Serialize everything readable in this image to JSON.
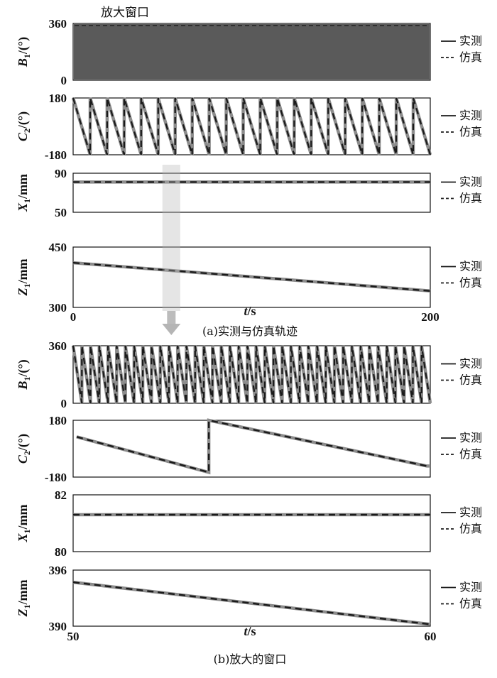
{
  "window_label": "放大窗口",
  "legend": {
    "measured": "实测",
    "simulated": "仿真"
  },
  "colors": {
    "measured": "#1a1a1a",
    "simulated": "#8c8c8c",
    "window_fill": "#5a5a5a",
    "arrow": "#b5b5b5"
  },
  "chart_data": [
    {
      "group": "a",
      "caption": "(a)实测与仿真轨迹",
      "xlabel": "t/s",
      "xlim": [
        0,
        200
      ],
      "x_ticks": [
        "0",
        "200"
      ],
      "highlight_window": [
        50,
        60
      ],
      "subplots": [
        {
          "id": "B1",
          "type": "line",
          "ylabel": "B1/(°)",
          "ylim": [
            0,
            360
          ],
          "y_ticks": [
            "360",
            "0"
          ],
          "filled_dense_signal": true,
          "sawtooth_cycles": 200,
          "series": [
            {
              "name": "实测"
            },
            {
              "name": "仿真"
            }
          ]
        },
        {
          "id": "C2",
          "type": "line",
          "ylabel": "C2/(°)",
          "ylim": [
            -180,
            180
          ],
          "y_ticks": [
            "180",
            "-180"
          ],
          "sawtooth": {
            "cycles": 21,
            "start": 80,
            "step_value": -180
          },
          "series": [
            {
              "name": "实测"
            },
            {
              "name": "仿真"
            }
          ]
        },
        {
          "id": "X1",
          "type": "line",
          "ylabel": "X1/mm",
          "ylim": [
            50,
            90
          ],
          "y_ticks": [
            "90",
            "50"
          ],
          "series": [
            {
              "name": "实测",
              "x": [
                0,
                200
              ],
              "y": [
                81,
                81
              ]
            },
            {
              "name": "仿真",
              "x": [
                0,
                200
              ],
              "y": [
                81,
                81
              ]
            }
          ]
        },
        {
          "id": "Z1",
          "type": "line",
          "ylabel": "Z1/mm",
          "ylim": [
            300,
            450
          ],
          "y_ticks": [
            "450",
            "300"
          ],
          "series": [
            {
              "name": "实测",
              "x": [
                0,
                200
              ],
              "y": [
                411,
                341
              ]
            },
            {
              "name": "仿真",
              "x": [
                0,
                200
              ],
              "y": [
                411,
                341
              ]
            }
          ]
        }
      ]
    },
    {
      "group": "b",
      "caption": "(b)放大的窗口",
      "xlabel": "t/s",
      "xlim": [
        50,
        60
      ],
      "x_ticks": [
        "50",
        "60"
      ],
      "subplots": [
        {
          "id": "B1",
          "type": "line",
          "ylabel": "B1/(°)",
          "ylim": [
            0,
            360
          ],
          "y_ticks": [
            "360",
            "0"
          ],
          "sawtooth": {
            "cycles": 41,
            "start": 340,
            "step_value": 0
          },
          "series": [
            {
              "name": "实测"
            },
            {
              "name": "仿真"
            }
          ]
        },
        {
          "id": "C2",
          "type": "line",
          "ylabel": "C2/(°)",
          "ylim": [
            -180,
            180
          ],
          "y_ticks": [
            "180",
            "-180"
          ],
          "series": [
            {
              "name": "实测",
              "x": [
                50.1,
                53.8,
                53.8,
                59.9,
                60
              ],
              "y": [
                75,
                -150,
                180,
                -110,
                -110
              ]
            },
            {
              "name": "仿真",
              "x": [
                50.1,
                53.8,
                53.8,
                59.9,
                60
              ],
              "y": [
                75,
                -150,
                180,
                -110,
                -110
              ]
            }
          ]
        },
        {
          "id": "X1",
          "type": "line",
          "ylabel": "X1/mm",
          "ylim": [
            80,
            82
          ],
          "y_ticks": [
            "82",
            "80"
          ],
          "series": [
            {
              "name": "实测",
              "x": [
                50,
                60
              ],
              "y": [
                81.3,
                81.3
              ]
            },
            {
              "name": "仿真",
              "x": [
                50,
                60
              ],
              "y": [
                81.3,
                81.3
              ]
            }
          ]
        },
        {
          "id": "Z1",
          "type": "line",
          "ylabel": "Z1/mm",
          "ylim": [
            390,
            396
          ],
          "y_ticks": [
            "396",
            "390"
          ],
          "series": [
            {
              "name": "实测",
              "x": [
                50,
                60
              ],
              "y": [
                394.7,
                390.2
              ]
            },
            {
              "name": "仿真",
              "x": [
                50,
                60
              ],
              "y": [
                394.7,
                390.2
              ]
            }
          ]
        }
      ]
    }
  ]
}
